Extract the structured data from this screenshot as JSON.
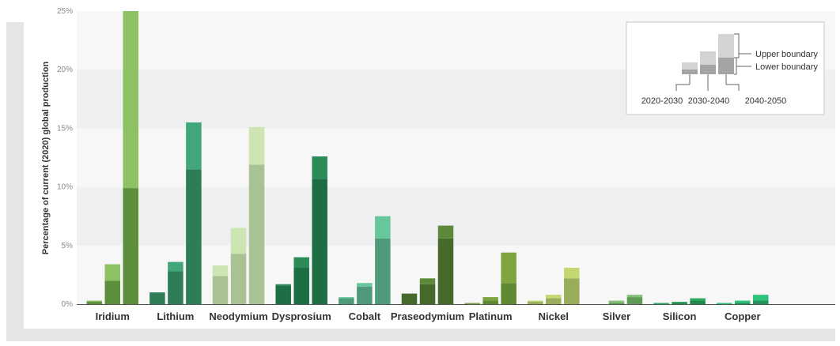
{
  "chart_data": {
    "type": "bar",
    "ylabel": "Percentage of current (2020) global production",
    "xlabel": "",
    "ylim": [
      0,
      25
    ],
    "y_ticks": [
      "0%",
      "5%",
      "10%",
      "15%",
      "20%",
      "25%"
    ],
    "grid": "horizontal bands",
    "categories": [
      "Iridium",
      "Lithium",
      "Neodymium",
      "Dysprosium",
      "Cobalt",
      "Praseodymium",
      "Platinum",
      "Nickel",
      "Silver",
      "Silicon",
      "Copper"
    ],
    "periods": [
      "2020-2030",
      "2030-2040",
      "2040-2050"
    ],
    "colors": {
      "Iridium": [
        "#5b8f3c",
        "#8cc264"
      ],
      "Lithium": [
        "#2e7d57",
        "#41a67a"
      ],
      "Neodymium": [
        "#a8c292",
        "#cde4b3"
      ],
      "Dysprosium": [
        "#1d6e45",
        "#2b8c57"
      ],
      "Cobalt": [
        "#4f9a7a",
        "#67c69a"
      ],
      "Praseodymium": [
        "#466a2c",
        "#5c8a3a"
      ],
      "Platinum": [
        "#5f8a33",
        "#7ea540"
      ],
      "Nickel": [
        "#98ae5a",
        "#c4d870"
      ],
      "Silver": [
        "#5e9a56",
        "#86c07a"
      ],
      "Silicon": [
        "#1f8a4a",
        "#2cab5c"
      ],
      "Copper": [
        "#21935a",
        "#2ec27a"
      ]
    },
    "series": [
      {
        "name": "Lower boundary",
        "values": [
          [
            0.2,
            2.0,
            9.9
          ],
          [
            1.0,
            2.8,
            11.5
          ],
          [
            2.4,
            4.3,
            11.9
          ],
          [
            1.6,
            3.1,
            10.7
          ],
          [
            0.5,
            1.5,
            5.6
          ],
          [
            0.9,
            1.7,
            5.6
          ],
          [
            0.0,
            0.3,
            1.8
          ],
          [
            0.2,
            0.5,
            2.2
          ],
          [
            0.0,
            0.1,
            0.6
          ],
          [
            0.0,
            0.1,
            0.3
          ],
          [
            0.0,
            0.1,
            0.3
          ]
        ]
      },
      {
        "name": "Upper boundary",
        "values": [
          [
            0.3,
            3.4,
            25.0
          ],
          [
            1.0,
            3.6,
            15.5
          ],
          [
            3.3,
            6.5,
            15.1
          ],
          [
            1.7,
            4.0,
            12.6
          ],
          [
            0.6,
            1.8,
            7.5
          ],
          [
            0.9,
            2.2,
            6.7
          ],
          [
            0.1,
            0.6,
            4.4
          ],
          [
            0.3,
            0.8,
            3.1
          ],
          [
            0.0,
            0.3,
            0.8
          ],
          [
            0.1,
            0.2,
            0.5
          ],
          [
            0.1,
            0.3,
            0.8
          ]
        ]
      }
    ],
    "legend": {
      "upper_label": "Upper boundary",
      "lower_label": "Lower boundary",
      "periods": [
        "2020-2030",
        "2030-2040",
        "2040-2050"
      ],
      "placement": "top-right"
    }
  }
}
